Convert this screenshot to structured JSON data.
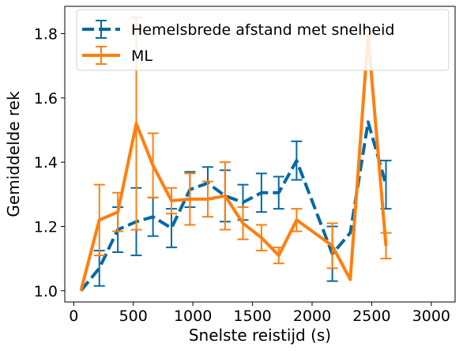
{
  "chart_data": {
    "type": "line",
    "xlabel": "Snelste reistijd (s)",
    "ylabel": "Gemiddelde rek",
    "xlim": [
      -75,
      3200
    ],
    "ylim": [
      0.965,
      1.885
    ],
    "xticks": [
      0,
      500,
      1000,
      1500,
      2000,
      2500,
      3000
    ],
    "yticks": [
      1.0,
      1.2,
      1.4,
      1.6,
      1.8
    ],
    "ytick_labels": [
      "1.0",
      "1.2",
      "1.4",
      "1.6",
      "1.8"
    ],
    "grid": false,
    "legend_position": "top-left",
    "series": [
      {
        "name": "Hemelsbrede afstand met snelheid",
        "color": "#0569a3",
        "style": "dashed",
        "points": [
          {
            "x": 60,
            "y": 1.0,
            "err": 0.0
          },
          {
            "x": 215,
            "y": 1.07,
            "err": 0.055
          },
          {
            "x": 370,
            "y": 1.19,
            "err": 0.07
          },
          {
            "x": 525,
            "y": 1.215,
            "err": 0.105
          },
          {
            "x": 665,
            "y": 1.23,
            "err": 0.06
          },
          {
            "x": 820,
            "y": 1.195,
            "err": 0.06
          },
          {
            "x": 975,
            "y": 1.315,
            "err": 0.055
          },
          {
            "x": 1125,
            "y": 1.335,
            "err": 0.05
          },
          {
            "x": 1270,
            "y": 1.295,
            "err": 0.08
          },
          {
            "x": 1420,
            "y": 1.275,
            "err": 0.055
          },
          {
            "x": 1575,
            "y": 1.305,
            "err": 0.06
          },
          {
            "x": 1720,
            "y": 1.305,
            "err": 0.05
          },
          {
            "x": 1870,
            "y": 1.405,
            "err": 0.06
          },
          {
            "x": 2170,
            "y": 1.115,
            "err": 0.085
          },
          {
            "x": 2320,
            "y": 1.18,
            "err": 0.0
          },
          {
            "x": 2470,
            "y": 1.525,
            "err": 0.0
          },
          {
            "x": 2620,
            "y": 1.33,
            "err": 0.075
          }
        ]
      },
      {
        "name": "ML",
        "color": "#ff7f0e",
        "style": "solid",
        "points": [
          {
            "x": 60,
            "y": 1.0,
            "err": 0.0
          },
          {
            "x": 215,
            "y": 1.22,
            "err": 0.11
          },
          {
            "x": 370,
            "y": 1.245,
            "err": 0.06
          },
          {
            "x": 525,
            "y": 1.52,
            "err": 0.33
          },
          {
            "x": 665,
            "y": 1.39,
            "err": 0.1
          },
          {
            "x": 820,
            "y": 1.28,
            "err": 0.04
          },
          {
            "x": 975,
            "y": 1.285,
            "err": 0.08
          },
          {
            "x": 1125,
            "y": 1.285,
            "err": 0.055
          },
          {
            "x": 1270,
            "y": 1.295,
            "err": 0.105
          },
          {
            "x": 1420,
            "y": 1.21,
            "err": 0.05
          },
          {
            "x": 1575,
            "y": 1.165,
            "err": 0.04
          },
          {
            "x": 1720,
            "y": 1.11,
            "err": 0.025
          },
          {
            "x": 1870,
            "y": 1.22,
            "err": 0.035
          },
          {
            "x": 2170,
            "y": 1.14,
            "err": 0.07
          },
          {
            "x": 2320,
            "y": 1.035,
            "err": 0.0
          },
          {
            "x": 2470,
            "y": 1.795,
            "err": 0.0
          },
          {
            "x": 2620,
            "y": 1.14,
            "err": 0.04
          }
        ]
      }
    ]
  }
}
